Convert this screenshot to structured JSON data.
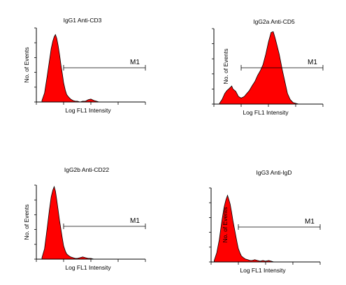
{
  "chart_data": [
    {
      "type": "area",
      "title": "IgG1 Anti-CD3",
      "xlabel": "Log FL1 Intensity",
      "ylabel": "No. of Events",
      "xscale": "log",
      "xlim": [
        1,
        10000
      ],
      "ylim": [
        0,
        100
      ],
      "marker": {
        "label": "M1",
        "x_start": 10,
        "x_end": 10000
      },
      "fill_color": "#ff0000",
      "x": [
        1.6,
        2.0,
        2.5,
        3.0,
        3.5,
        4.0,
        4.5,
        5.0,
        5.6,
        6.3,
        7.1,
        8.0,
        9.0,
        10,
        11.5,
        13,
        15,
        18,
        22,
        27,
        32,
        40,
        50,
        63,
        80,
        100,
        130,
        160,
        200,
        300
      ],
      "y": [
        2,
        12,
        35,
        55,
        72,
        82,
        88,
        91,
        86,
        76,
        64,
        50,
        38,
        26,
        16,
        10,
        7,
        4,
        2,
        1,
        1,
        0,
        1,
        1,
        3,
        4,
        2,
        1,
        0,
        0
      ]
    },
    {
      "type": "area",
      "title": "IgG2a Anti-CD5",
      "xlabel": "Log FL1 Intensity",
      "ylabel": "No. of Events",
      "xscale": "log",
      "xlim": [
        1,
        10000
      ],
      "ylim": [
        0,
        100
      ],
      "marker": {
        "label": "M1",
        "x_start": 10,
        "x_end": 10000
      },
      "fill_color": "#ff0000",
      "x": [
        1.6,
        2.0,
        2.5,
        3.0,
        3.5,
        4.0,
        4.5,
        5.0,
        6.3,
        8.0,
        10,
        13,
        16,
        20,
        25,
        32,
        40,
        50,
        63,
        80,
        100,
        125,
        150,
        175,
        200,
        250,
        320,
        400,
        500,
        630,
        800,
        1000,
        1300
      ],
      "y": [
        1,
        6,
        14,
        18,
        20,
        22,
        24,
        20,
        17,
        10,
        8,
        10,
        14,
        18,
        24,
        30,
        38,
        44,
        52,
        66,
        82,
        95,
        96,
        88,
        80,
        66,
        46,
        30,
        14,
        6,
        2,
        1,
        0
      ]
    },
    {
      "type": "area",
      "title": "IgG2b Anti-CD22",
      "xlabel": "Log FL1 Intensity",
      "ylabel": "No. of Events",
      "xscale": "log",
      "xlim": [
        1,
        10000
      ],
      "ylim": [
        0,
        100
      ],
      "marker": {
        "label": "M1",
        "x_start": 10,
        "x_end": 10000
      },
      "fill_color": "#ff0000",
      "x": [
        1.6,
        2.0,
        2.5,
        3.0,
        3.5,
        4.0,
        4.5,
        5.0,
        5.6,
        6.3,
        7.1,
        8.0,
        9.0,
        10,
        11.5,
        13,
        15,
        18,
        22,
        27,
        32,
        40,
        50,
        63,
        80,
        100,
        130,
        200
      ],
      "y": [
        2,
        14,
        42,
        66,
        84,
        93,
        98,
        92,
        80,
        66,
        52,
        40,
        28,
        18,
        11,
        7,
        5,
        3,
        2,
        1,
        1,
        2,
        3,
        2,
        1,
        1,
        0,
        0
      ]
    },
    {
      "type": "area",
      "title": "IgG3 Anti-IgD",
      "xlabel": "Log FL1 Intensity",
      "ylabel": "No. of Events",
      "xscale": "log",
      "xlim": [
        1,
        10000
      ],
      "ylim": [
        0,
        100
      ],
      "marker": {
        "label": "M1",
        "x_start": 10,
        "x_end": 10000
      },
      "fill_color": "#ff0000",
      "x": [
        1.3,
        1.6,
        2.0,
        2.5,
        3.0,
        3.5,
        4.0,
        4.5,
        5.0,
        5.6,
        6.3,
        7.1,
        8.0,
        9.0,
        10,
        11.5,
        13,
        15,
        18,
        22,
        27,
        32,
        40,
        50,
        63,
        80,
        100,
        130,
        160,
        200,
        300
      ],
      "y": [
        2,
        12,
        30,
        56,
        74,
        84,
        90,
        84,
        78,
        68,
        56,
        46,
        36,
        26,
        18,
        12,
        8,
        6,
        4,
        3,
        2,
        2,
        3,
        2,
        1,
        2,
        1,
        2,
        1,
        0,
        0
      ]
    }
  ]
}
